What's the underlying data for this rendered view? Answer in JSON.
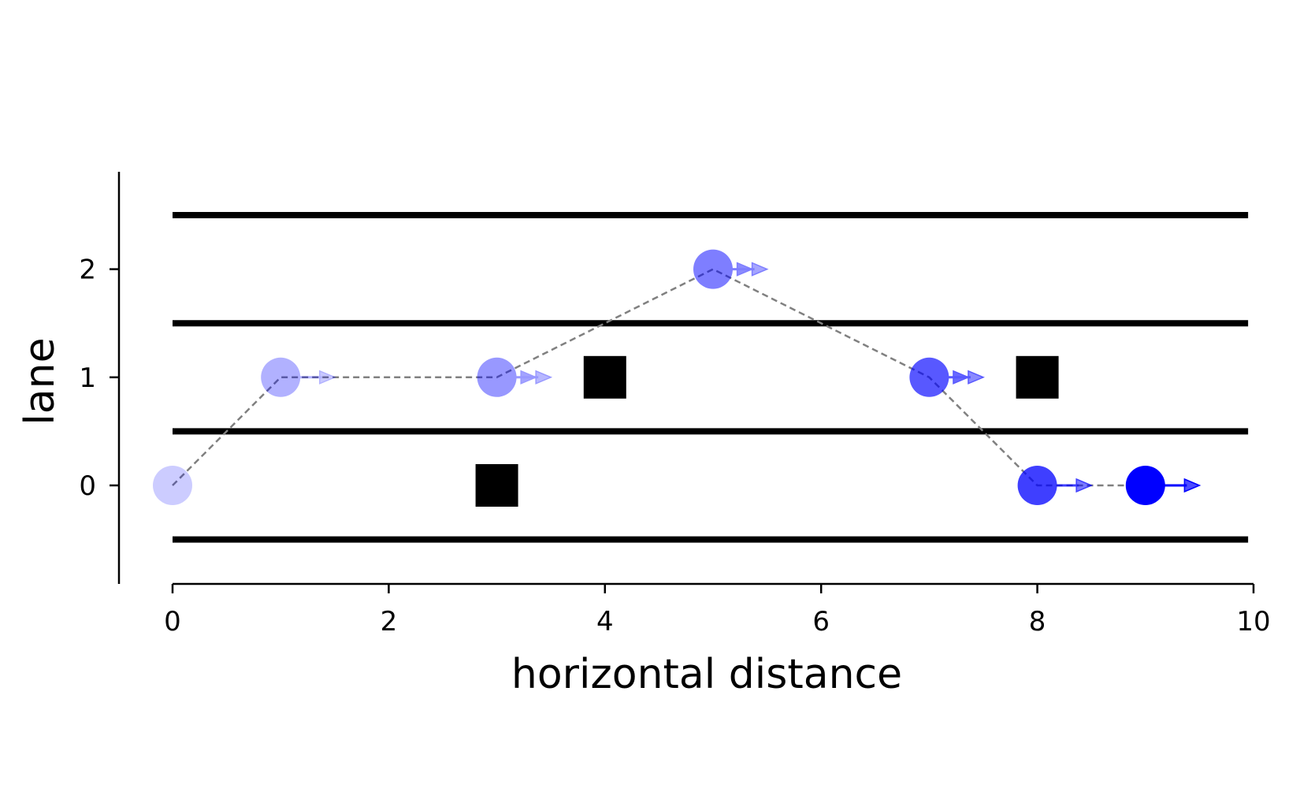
{
  "chart_data": {
    "type": "scatter",
    "title": "",
    "xlabel": "horizontal distance",
    "ylabel": "lane",
    "xlim": [
      -0.5,
      10
    ],
    "ylim": [
      -0.9,
      2.9
    ],
    "x_ticks": [
      0,
      2,
      4,
      6,
      8,
      10
    ],
    "x_tick_labels": [
      "0",
      "2",
      "4",
      "6",
      "8",
      "10"
    ],
    "y_ticks": [
      0,
      1,
      2
    ],
    "y_tick_labels": [
      "0",
      "1",
      "2"
    ],
    "grid": false,
    "lane_boundaries": {
      "y": [
        -0.5,
        0.5,
        1.5,
        2.5
      ],
      "x_range": [
        0,
        9.95
      ],
      "color": "#000000"
    },
    "obstacles": [
      {
        "x": 3,
        "y": 0
      },
      {
        "x": 4,
        "y": 1
      },
      {
        "x": 8,
        "y": 1
      }
    ],
    "trajectory": {
      "color": "#0000ff",
      "line_color": "#808080",
      "points": [
        {
          "x": 0,
          "y": 0,
          "alpha": 0.2,
          "arrows": 0
        },
        {
          "x": 1,
          "y": 1,
          "alpha": 0.3,
          "arrows": 1
        },
        {
          "x": 3,
          "y": 1,
          "alpha": 0.4,
          "arrows": 2
        },
        {
          "x": 5,
          "y": 2,
          "alpha": 0.5,
          "arrows": 2
        },
        {
          "x": 7,
          "y": 1,
          "alpha": 0.65,
          "arrows": 2
        },
        {
          "x": 8,
          "y": 0,
          "alpha": 0.75,
          "arrows": 1
        },
        {
          "x": 9,
          "y": 0,
          "alpha": 1.0,
          "arrows": 1
        }
      ]
    }
  }
}
